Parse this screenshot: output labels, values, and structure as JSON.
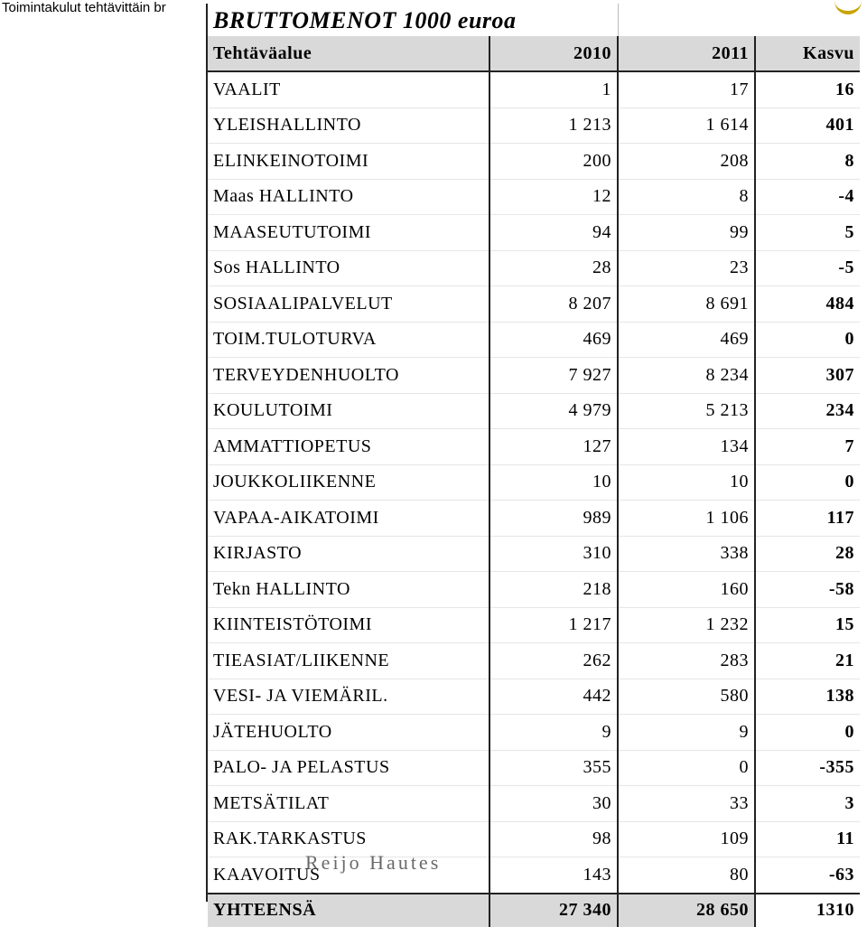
{
  "corner_label": "Toimintakulut tehtävittäin br",
  "title": "BRUTTOMENOT 1000 euroa",
  "header": {
    "name": "Tehtäväalue",
    "y2010": "2010",
    "y2011": "2011",
    "growth": "Kasvu"
  },
  "rows": [
    {
      "name": "VAALIT",
      "v2010": "1",
      "v2011": "17",
      "growth": "16"
    },
    {
      "name": "YLEISHALLINTO",
      "v2010": "1 213",
      "v2011": "1 614",
      "growth": "401"
    },
    {
      "name": "ELINKEINOTOIMI",
      "v2010": "200",
      "v2011": "208",
      "growth": "8"
    },
    {
      "name": "Maas HALLINTO",
      "v2010": "12",
      "v2011": "8",
      "growth": "-4"
    },
    {
      "name": "MAASEUTUTOIMI",
      "v2010": "94",
      "v2011": "99",
      "growth": "5"
    },
    {
      "name": "Sos HALLINTO",
      "v2010": "28",
      "v2011": "23",
      "growth": "-5"
    },
    {
      "name": "SOSIAALIPALVELUT",
      "v2010": "8 207",
      "v2011": "8 691",
      "growth": "484"
    },
    {
      "name": "TOIM.TULOTURVA",
      "v2010": "469",
      "v2011": "469",
      "growth": "0"
    },
    {
      "name": "TERVEYDENHUOLTO",
      "v2010": "7 927",
      "v2011": "8 234",
      "growth": "307"
    },
    {
      "name": "KOULUTOIMI",
      "v2010": "4 979",
      "v2011": "5 213",
      "growth": "234"
    },
    {
      "name": "AMMATTIOPETUS",
      "v2010": "127",
      "v2011": "134",
      "growth": "7"
    },
    {
      "name": "JOUKKOLIIKENNE",
      "v2010": "10",
      "v2011": "10",
      "growth": "0"
    },
    {
      "name": "VAPAA-AIKATOIMI",
      "v2010": "989",
      "v2011": "1 106",
      "growth": "117"
    },
    {
      "name": "KIRJASTO",
      "v2010": "310",
      "v2011": "338",
      "growth": "28"
    },
    {
      "name": "Tekn HALLINTO",
      "v2010": "218",
      "v2011": "160",
      "growth": "-58"
    },
    {
      "name": "KIINTEISTÖTOIMI",
      "v2010": "1 217",
      "v2011": "1 232",
      "growth": "15"
    },
    {
      "name": "TIEASIAT/LIIKENNE",
      "v2010": "262",
      "v2011": "283",
      "growth": "21"
    },
    {
      "name": "VESI- JA VIEMÄRIL.",
      "v2010": "442",
      "v2011": "580",
      "growth": "138"
    },
    {
      "name": "JÄTEHUOLTO",
      "v2010": "9",
      "v2011": "9",
      "growth": "0"
    },
    {
      "name": "PALO- JA PELASTUS",
      "v2010": "355",
      "v2011": "0",
      "growth": "-355"
    },
    {
      "name": "METSÄTILAT",
      "v2010": "30",
      "v2011": "33",
      "growth": "3"
    },
    {
      "name": "RAK.TARKASTUS",
      "v2010": "98",
      "v2011": "109",
      "growth": "11"
    },
    {
      "name": "KAAVOITUS",
      "v2010": "143",
      "v2011": "80",
      "growth": "-63"
    }
  ],
  "total": {
    "name": "YHTEENSÄ",
    "v2010": "27 340",
    "v2011": "28 650",
    "growth": "1310"
  },
  "watermark": "Reijo Hautes"
}
